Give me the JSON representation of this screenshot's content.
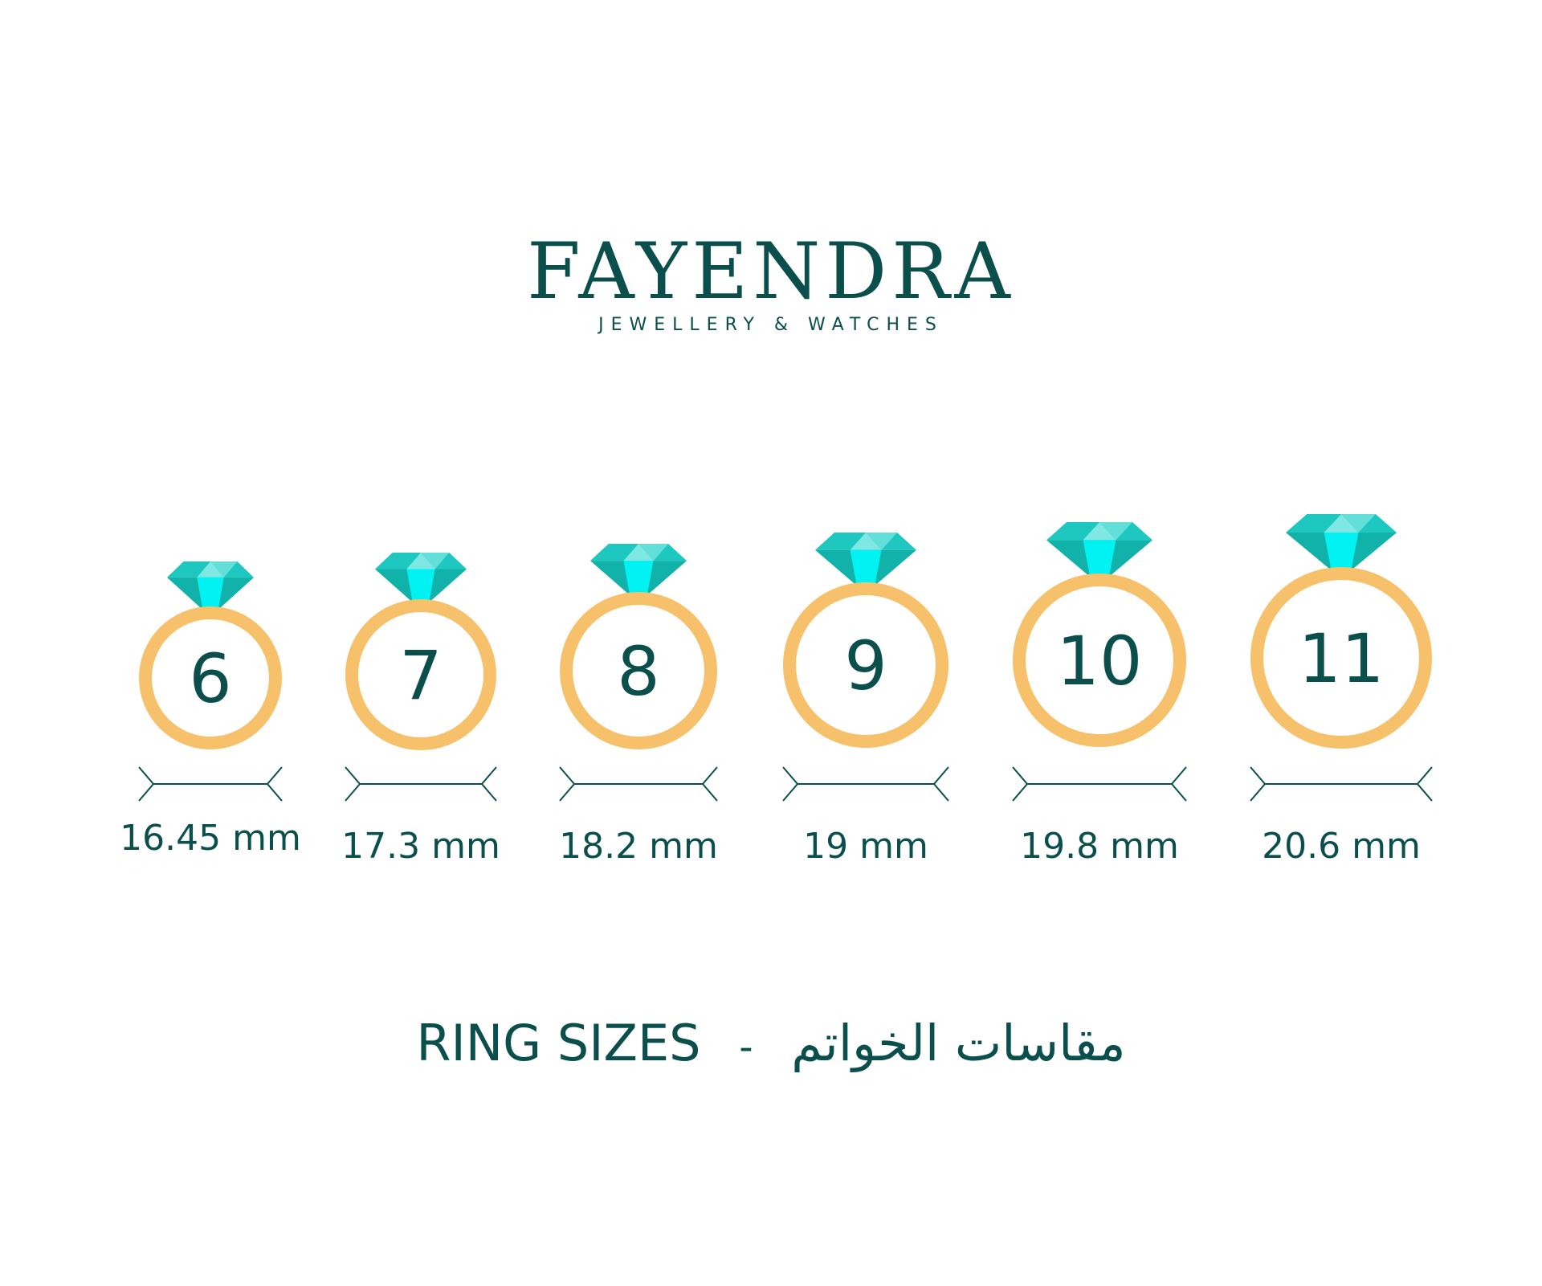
{
  "brand": {
    "name": "FAYENDRA",
    "tagline": "JEWELLERY & WATCHES"
  },
  "rings": [
    {
      "size": "6",
      "diameter": "16.45 mm"
    },
    {
      "size": "7",
      "diameter": "17.3 mm"
    },
    {
      "size": "8",
      "diameter": "18.2 mm"
    },
    {
      "size": "9",
      "diameter": "19 mm"
    },
    {
      "size": "10",
      "diameter": "19.8 mm"
    },
    {
      "size": "11",
      "diameter": "20.6 mm"
    }
  ],
  "footer": {
    "title_en": "RING SIZES",
    "separator": "-",
    "title_ar": "مقاسات الخواتم"
  },
  "colors": {
    "text": "#0b4f4c",
    "ring": "#f7c06a",
    "gem": "#1ec8c0",
    "gem_light": "#7fe8e4",
    "gem_bright": "#00f2f2",
    "gem_dark": "#10b2a9"
  }
}
